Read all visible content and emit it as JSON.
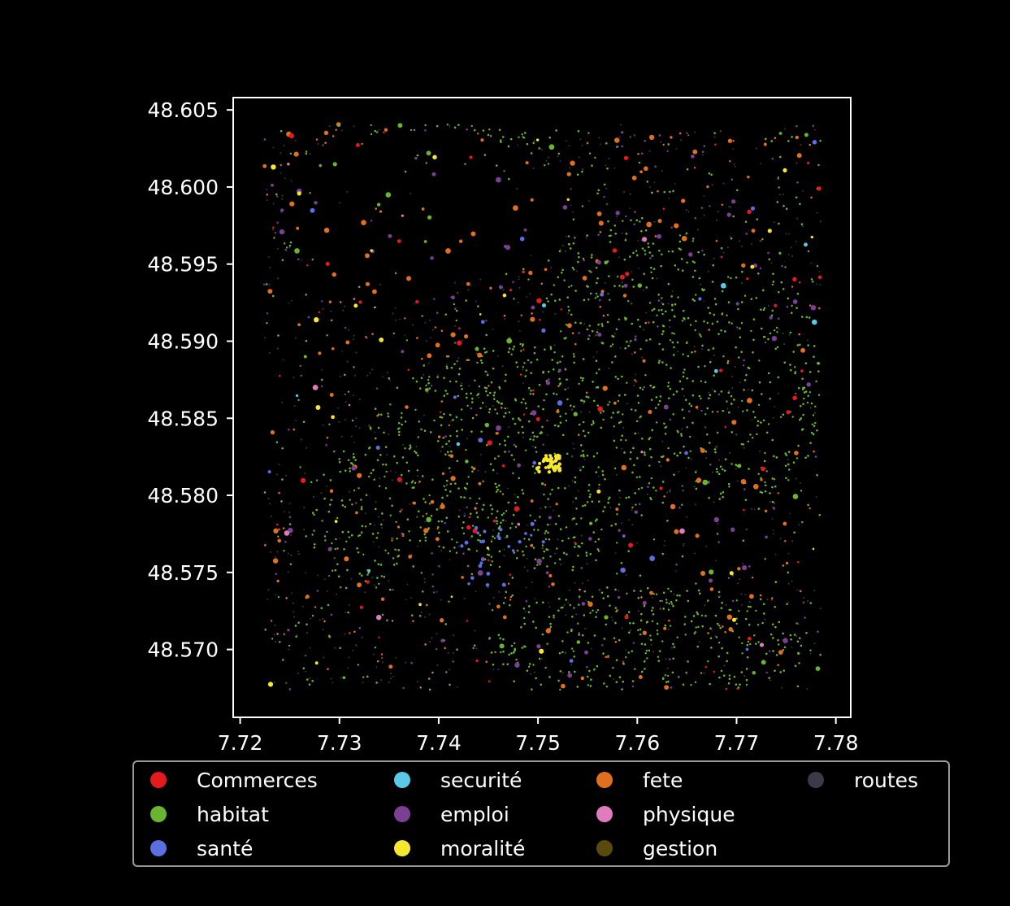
{
  "chart_data": {
    "type": "scatter",
    "title": "",
    "xlabel": "",
    "ylabel": "",
    "xlim": [
      7.7193,
      7.7815
    ],
    "ylim": [
      48.5656,
      48.6058
    ],
    "xticks": [
      7.72,
      7.73,
      7.74,
      7.75,
      7.76,
      7.77,
      7.78
    ],
    "xtick_labels": [
      "7.72",
      "7.73",
      "7.74",
      "7.75",
      "7.76",
      "7.77",
      "7.78"
    ],
    "yticks": [
      48.57,
      48.575,
      48.58,
      48.585,
      48.59,
      48.595,
      48.6,
      48.605
    ],
    "ytick_labels": [
      "48.570",
      "48.575",
      "48.580",
      "48.585",
      "48.590",
      "48.595",
      "48.600",
      "48.605"
    ],
    "grid": false,
    "legend_placement": "bottom",
    "legend_columns": 4,
    "series": [
      {
        "name": "Commerces",
        "color": "#e41a1c"
      },
      {
        "name": "habitat",
        "color": "#6ab530"
      },
      {
        "name": "santé",
        "color": "#5b6fe0"
      },
      {
        "name": "securité",
        "color": "#5bc8e6"
      },
      {
        "name": "emploi",
        "color": "#7b3f93"
      },
      {
        "name": "moralité",
        "color": "#f5e82e"
      },
      {
        "name": "fete",
        "color": "#e07020"
      },
      {
        "name": "physique",
        "color": "#e07bbf"
      },
      {
        "name": "gestion",
        "color": "#5a4a0e"
      },
      {
        "name": "routes",
        "color": "#3a3a48"
      }
    ]
  }
}
